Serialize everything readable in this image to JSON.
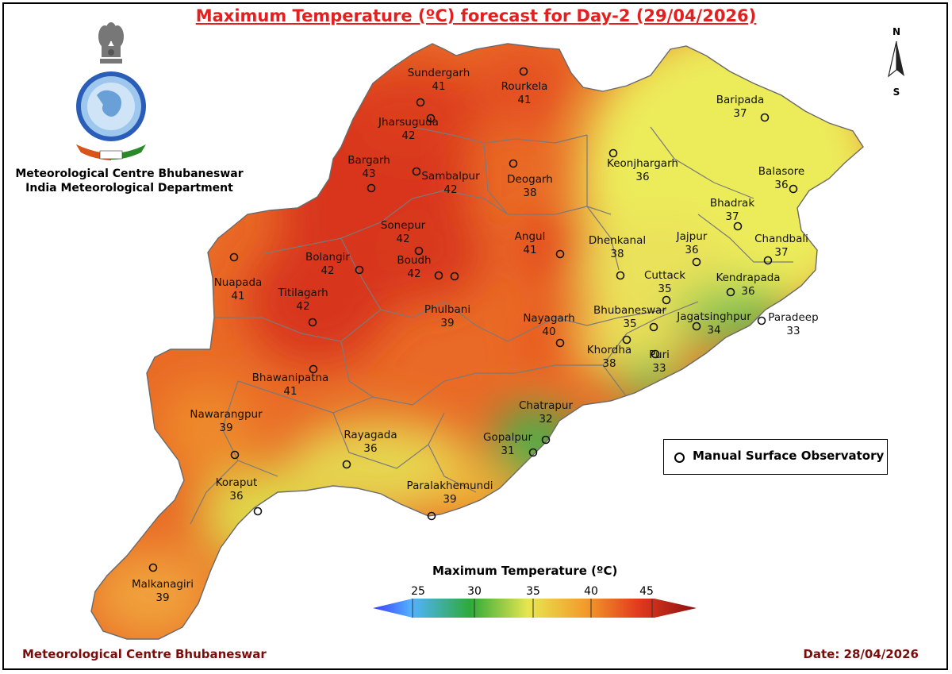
{
  "title": "Maximum Temperature (ºC) forecast for Day-2 (29/04/2026)",
  "org": {
    "line1": "Meteorological Centre Bhubaneswar",
    "line2": "India Meteorological Department"
  },
  "footer": {
    "left": "Meteorological Centre Bhubaneswar",
    "right": "Date: 28/04/2026"
  },
  "legend": {
    "title": "Maximum Temperature (ºC)",
    "ticks": [
      "25",
      "30",
      "35",
      "40",
      "45"
    ],
    "colors": [
      "#3b3bff",
      "#52b3ff",
      "#2eaa3a",
      "#f5e050",
      "#f29a2a",
      "#e23a1e",
      "#8b1010"
    ]
  },
  "observatory_legend": "Manual Surface Observatory",
  "compass": {
    "north": "N",
    "south": "S"
  },
  "stations": [
    {
      "name": "Sundergarh",
      "temp": "41"
    },
    {
      "name": "Rourkela",
      "temp": "41"
    },
    {
      "name": "Jharsuguda",
      "temp": "42"
    },
    {
      "name": "Bargarh",
      "temp": "43"
    },
    {
      "name": "Sambalpur",
      "temp": "42"
    },
    {
      "name": "Deogarh",
      "temp": "38"
    },
    {
      "name": "Keonjhargarh",
      "temp": "36"
    },
    {
      "name": "Baripada",
      "temp": "37"
    },
    {
      "name": "Balasore",
      "temp": "36"
    },
    {
      "name": "Bhadrak",
      "temp": "37"
    },
    {
      "name": "Chandbali",
      "temp": "37"
    },
    {
      "name": "Sonepur",
      "temp": "42"
    },
    {
      "name": "Bolangir",
      "temp": "42"
    },
    {
      "name": "Boudh",
      "temp": "42"
    },
    {
      "name": "Angul",
      "temp": "41"
    },
    {
      "name": "Dhenkanal",
      "temp": "38"
    },
    {
      "name": "Jajpur",
      "temp": "36"
    },
    {
      "name": "Nuapada",
      "temp": "41"
    },
    {
      "name": "Titilagarh",
      "temp": "42"
    },
    {
      "name": "Cuttack",
      "temp": "35"
    },
    {
      "name": "Kendrapada",
      "temp": "36"
    },
    {
      "name": "Phulbani",
      "temp": "39"
    },
    {
      "name": "Nayagarh",
      "temp": "40"
    },
    {
      "name": "Bhubaneswar",
      "temp": "35"
    },
    {
      "name": "Jagatsinghpur",
      "temp": "34"
    },
    {
      "name": "Paradeep",
      "temp": "33"
    },
    {
      "name": "Khordha",
      "temp": "38"
    },
    {
      "name": "Puri",
      "temp": "33"
    },
    {
      "name": "Bhawanipatna",
      "temp": "41"
    },
    {
      "name": "Chatrapur",
      "temp": "32"
    },
    {
      "name": "Nawarangpur",
      "temp": "39"
    },
    {
      "name": "Gopalpur",
      "temp": "31"
    },
    {
      "name": "Rayagada",
      "temp": "36"
    },
    {
      "name": "Koraput",
      "temp": "36"
    },
    {
      "name": "Paralakhemundi",
      "temp": "39"
    },
    {
      "name": "Malkanagiri",
      "temp": "39"
    }
  ]
}
